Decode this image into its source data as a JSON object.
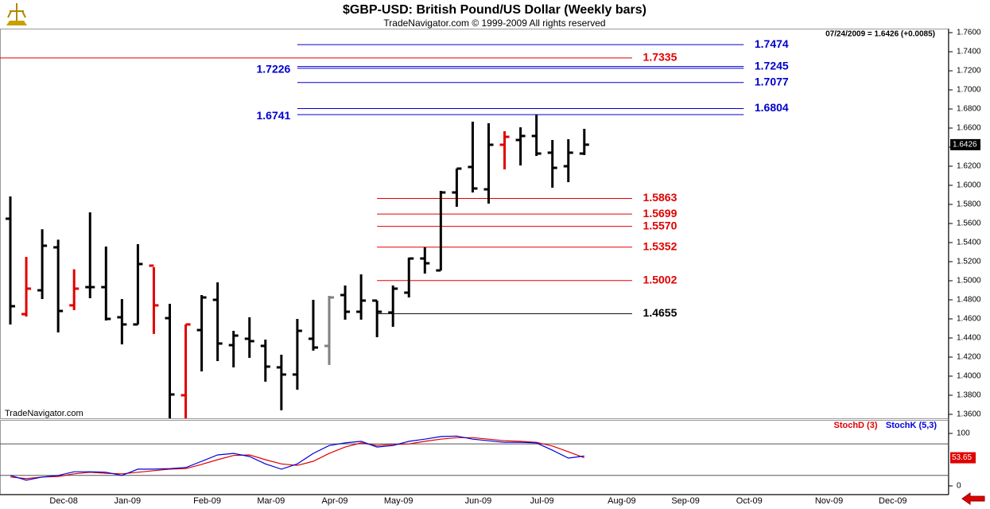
{
  "chart_data": [
    {
      "type": "ohlc",
      "title": "$GBP-USD:  British Pound/US Dollar  (Weekly bars)",
      "subtitle": "TradeNavigator.com © 1999-2009 All rights reserved",
      "info": "07/24/2009 = 1.6426 (+0.0085)",
      "watermark": "TradeNavigator.com",
      "categories": [
        null,
        null,
        null,
        "Dec-08",
        null,
        null,
        null,
        "Jan-09",
        null,
        null,
        null,
        null,
        "Feb-09",
        null,
        null,
        null,
        "Mar-09",
        null,
        null,
        null,
        "Apr-09",
        null,
        null,
        null,
        "May-09",
        null,
        null,
        null,
        null,
        "Jun-09",
        null,
        null,
        null,
        "Jul-09",
        null,
        null,
        null,
        null,
        "Aug-09",
        null,
        null,
        null,
        "Sep-09",
        null,
        null,
        null,
        "Oct-09",
        null,
        null,
        null,
        null,
        "Nov-09",
        null,
        null,
        null,
        "Dec-09",
        null,
        null
      ],
      "open": [
        1.565,
        1.465,
        1.49,
        1.535,
        1.4742,
        1.4933,
        1.4933,
        1.4617,
        1.4542,
        1.5158,
        1.4608,
        1.38,
        1.4483,
        1.48,
        1.4325,
        1.4392,
        1.4317,
        1.4092,
        1.4017,
        1.4392,
        1.4317,
        1.485,
        1.4675,
        1.4792,
        1.4667,
        1.4875,
        1.5233,
        1.5108,
        1.5925,
        1.6192,
        1.5958,
        1.6425,
        1.6475,
        1.6517,
        1.6342,
        1.62,
        1.6333,
        null,
        null,
        null,
        null,
        null,
        null,
        null,
        null,
        null,
        null,
        null,
        null,
        null,
        null,
        null,
        null,
        null,
        null,
        null,
        null,
        null
      ],
      "high": [
        1.5883,
        1.525,
        1.554,
        1.543,
        1.512,
        1.5717,
        1.5358,
        1.4808,
        1.5383,
        1.5142,
        1.4758,
        1.4542,
        1.485,
        1.4983,
        1.4475,
        1.4617,
        1.4383,
        1.4225,
        1.46,
        1.48,
        1.4842,
        1.495,
        1.5067,
        1.4792,
        1.495,
        1.5242,
        1.535,
        1.5942,
        1.6175,
        1.6667,
        1.665,
        1.6567,
        1.6608,
        1.6741,
        1.6475,
        1.6483,
        1.6592,
        null,
        null,
        null,
        null,
        null,
        null,
        null,
        null,
        null,
        null,
        null,
        null,
        null,
        null,
        null,
        null,
        null,
        null,
        null,
        null,
        null
      ],
      "low": [
        1.4542,
        1.4625,
        1.4808,
        1.4458,
        1.4692,
        1.4817,
        1.4583,
        1.4333,
        1.4542,
        1.4442,
        1.3558,
        1.3558,
        1.405,
        1.4158,
        1.4092,
        1.4192,
        1.3942,
        1.3642,
        1.3858,
        1.4267,
        1.4117,
        1.4592,
        1.4592,
        1.4408,
        1.4517,
        1.4825,
        1.5075,
        1.5108,
        1.5775,
        1.5925,
        1.5808,
        1.6167,
        1.6208,
        1.6308,
        1.5975,
        1.6033,
        1.6317,
        null,
        null,
        null,
        null,
        null,
        null,
        null,
        null,
        null,
        null,
        null,
        null,
        null,
        null,
        null,
        null,
        null,
        null,
        null,
        null,
        null
      ],
      "close": [
        1.4733,
        1.4917,
        1.5367,
        1.4683,
        1.4917,
        1.4933,
        1.46,
        1.4542,
        1.5175,
        1.4742,
        1.3808,
        1.4542,
        1.4825,
        1.4342,
        1.4425,
        1.4367,
        1.41,
        1.4017,
        1.4475,
        1.43,
        1.4825,
        1.4675,
        1.4792,
        1.4675,
        1.4917,
        1.5233,
        1.5183,
        1.5925,
        1.6175,
        1.5967,
        1.6425,
        1.6508,
        1.6517,
        1.6333,
        1.6183,
        1.6342,
        1.6426,
        null,
        null,
        null,
        null,
        null,
        null,
        null,
        null,
        null,
        null,
        null,
        null,
        null,
        null,
        null,
        null,
        null,
        null,
        null,
        null,
        null
      ],
      "bar_colors": [
        "#000",
        "#e00000",
        "#000",
        "#000",
        "#e00000",
        "#000",
        "#000",
        "#000",
        "#000",
        "#e00000",
        "#000",
        "#e00000",
        "#000",
        "#000",
        "#000",
        "#000",
        "#000",
        "#000",
        "#000",
        "#000",
        "#808080",
        "#000",
        "#000",
        "#000",
        "#000",
        "#000",
        "#000",
        "#000",
        "#000",
        "#000",
        "#000",
        "#e00000",
        "#000",
        "#000",
        "#000",
        "#000",
        "#000",
        null,
        null,
        null,
        null,
        null,
        null,
        null,
        null,
        null,
        null,
        null,
        null,
        null,
        null,
        null,
        null,
        null,
        null,
        null,
        null,
        null
      ],
      "ylim": [
        1.3558,
        1.7642
      ],
      "yticks": [
        {
          "value": 1.36,
          "label": "1.3600"
        },
        {
          "value": 1.38,
          "label": "1.3800"
        },
        {
          "value": 1.4,
          "label": "1.4000"
        },
        {
          "value": 1.42,
          "label": "1.4200"
        },
        {
          "value": 1.44,
          "label": "1.4400"
        },
        {
          "value": 1.46,
          "label": "1.4600"
        },
        {
          "value": 1.48,
          "label": "1.4800"
        },
        {
          "value": 1.5,
          "label": "1.5000"
        },
        {
          "value": 1.52,
          "label": "1.5200"
        },
        {
          "value": 1.54,
          "label": "1.5400"
        },
        {
          "value": 1.56,
          "label": "1.5600"
        },
        {
          "value": 1.58,
          "label": "1.5800"
        },
        {
          "value": 1.6,
          "label": "1.6000"
        },
        {
          "value": 1.62,
          "label": "1.6200"
        },
        {
          "value": 1.64,
          "label": "1.6400"
        },
        {
          "value": 1.66,
          "label": "1.6600"
        },
        {
          "value": 1.68,
          "label": "1.6800"
        },
        {
          "value": 1.7,
          "label": "1.7000"
        },
        {
          "value": 1.72,
          "label": "1.7200"
        },
        {
          "value": 1.74,
          "label": "1.7400"
        },
        {
          "value": 1.76,
          "label": "1.7600"
        }
      ],
      "levels": [
        {
          "value": 1.7474,
          "label": "1.7474",
          "color": "#0000cc",
          "side": "right",
          "start": 18,
          "end": 46
        },
        {
          "value": 1.7335,
          "label": "1.7335",
          "color": "#e00000",
          "side": "right",
          "start": 0,
          "end": 39
        },
        {
          "value": 1.7245,
          "label": "1.7245",
          "color": "#0000cc",
          "side": "right",
          "start": 18,
          "end": 46
        },
        {
          "value": 1.7226,
          "label": "1.7226",
          "color": "#0000cc",
          "side": "left",
          "start": 18,
          "end": 46
        },
        {
          "value": 1.7077,
          "label": "1.7077",
          "color": "#0000cc",
          "side": "right",
          "start": 18,
          "end": 46
        },
        {
          "value": 1.6804,
          "label": "1.6804",
          "color": "#0000cc",
          "side": "right",
          "start": 18,
          "end": 46
        },
        {
          "value": 1.6741,
          "label": "1.6741",
          "color": "#0000cc",
          "side": "left",
          "start": 18,
          "end": 46
        },
        {
          "value": 1.5863,
          "label": "1.5863",
          "color": "#e00000",
          "side": "right",
          "start": 23,
          "end": 39
        },
        {
          "value": 1.5699,
          "label": "1.5699",
          "color": "#e00000",
          "side": "right",
          "start": 23,
          "end": 39
        },
        {
          "value": 1.557,
          "label": "1.5570",
          "color": "#e00000",
          "side": "right",
          "start": 23,
          "end": 39
        },
        {
          "value": 1.5352,
          "label": "1.5352",
          "color": "#e00000",
          "side": "right",
          "start": 23,
          "end": 39
        },
        {
          "value": 1.5002,
          "label": "1.5002",
          "color": "#e00000",
          "side": "right",
          "start": 23,
          "end": 39
        },
        {
          "value": 1.4655,
          "label": "1.4655",
          "color": "#000000",
          "side": "right",
          "start": 23,
          "end": 39
        }
      ]
    },
    {
      "type": "line",
      "ylim": [
        -16.7,
        122.7
      ],
      "yticks": [
        0,
        100
      ],
      "levels": [
        80,
        20
      ],
      "series": [
        {
          "name": "StochD (3)",
          "color": "#e00000",
          "values": [
            17,
            14,
            17,
            18,
            23,
            26,
            24,
            23,
            26,
            29,
            32,
            33,
            41,
            50,
            58,
            59,
            50,
            42,
            39,
            47,
            62,
            74,
            82,
            77,
            79,
            80,
            85,
            89,
            92,
            92,
            89,
            86,
            85,
            83,
            76,
            65,
            53.65
          ]
        },
        {
          "name": "StochK (5,3)",
          "color": "#0000dd",
          "values": [
            20,
            11,
            17,
            20,
            27,
            27,
            26,
            20,
            32,
            32,
            33,
            35,
            47,
            59,
            62,
            56,
            42,
            32,
            42,
            62,
            77,
            82,
            85,
            74,
            77,
            85,
            89,
            94,
            95,
            89,
            86,
            83,
            83,
            82,
            68,
            53,
            57
          ]
        }
      ]
    }
  ]
}
